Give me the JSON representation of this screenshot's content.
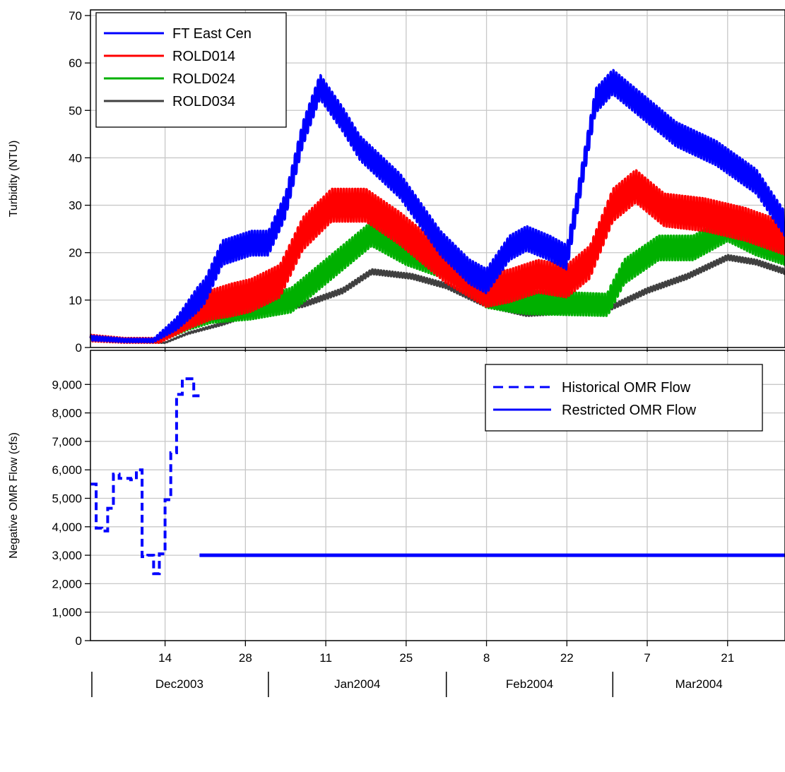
{
  "chart_data": [
    {
      "type": "line",
      "panel": "top",
      "ylabel": "Turbidity (NTU)",
      "ylim": [
        0,
        70
      ],
      "yticks": [
        "0",
        "10",
        "20",
        "30",
        "40",
        "50",
        "60",
        "70"
      ],
      "grid": true,
      "legend": {
        "placement": "top-left"
      },
      "series": [
        {
          "name": "FT East Cen",
          "color": "#0000ff",
          "daily_swing": 3,
          "points": [
            [
              "2003-12-01",
              2
            ],
            [
              "2003-12-07",
              1.5
            ],
            [
              "2003-12-12",
              1.5
            ],
            [
              "2003-12-16",
              5
            ],
            [
              "2003-12-21",
              12
            ],
            [
              "2003-12-24",
              20
            ],
            [
              "2003-12-29",
              22
            ],
            [
              "2004-01-01",
              22
            ],
            [
              "2004-01-04",
              30
            ],
            [
              "2004-01-07",
              45
            ],
            [
              "2004-01-10",
              55
            ],
            [
              "2004-01-14",
              48
            ],
            [
              "2004-01-17",
              42
            ],
            [
              "2004-01-24",
              34
            ],
            [
              "2004-01-31",
              22
            ],
            [
              "2004-02-05",
              16
            ],
            [
              "2004-02-08",
              14
            ],
            [
              "2004-02-12",
              21
            ],
            [
              "2004-02-15",
              23
            ],
            [
              "2004-02-19",
              21
            ],
            [
              "2004-02-22",
              19
            ],
            [
              "2004-02-24",
              32
            ],
            [
              "2004-02-27",
              52
            ],
            [
              "2004-03-01",
              56
            ],
            [
              "2004-03-05",
              52
            ],
            [
              "2004-03-12",
              45
            ],
            [
              "2004-03-19",
              41
            ],
            [
              "2004-03-26",
              35
            ],
            [
              "2004-03-31",
              26
            ]
          ]
        },
        {
          "name": "ROLD014",
          "color": "#ff0000",
          "daily_swing": 4,
          "points": [
            [
              "2003-12-01",
              2
            ],
            [
              "2003-12-07",
              1.5
            ],
            [
              "2003-12-13",
              1.5
            ],
            [
              "2003-12-18",
              6
            ],
            [
              "2003-12-22",
              9
            ],
            [
              "2003-12-29",
              11
            ],
            [
              "2004-01-03",
              14
            ],
            [
              "2004-01-07",
              24
            ],
            [
              "2004-01-12",
              30
            ],
            [
              "2004-01-18",
              30
            ],
            [
              "2004-01-24",
              25
            ],
            [
              "2004-02-01",
              17
            ],
            [
              "2004-02-08",
              12
            ],
            [
              "2004-02-12",
              13
            ],
            [
              "2004-02-17",
              15
            ],
            [
              "2004-02-22",
              14
            ],
            [
              "2004-02-26",
              18
            ],
            [
              "2004-03-01",
              30
            ],
            [
              "2004-03-05",
              34
            ],
            [
              "2004-03-10",
              29
            ],
            [
              "2004-03-17",
              28
            ],
            [
              "2004-03-24",
              26
            ],
            [
              "2004-03-31",
              23
            ]
          ]
        },
        {
          "name": "ROLD024",
          "color": "#00b000",
          "daily_swing": 3,
          "points": [
            [
              "2003-12-01",
              2
            ],
            [
              "2003-12-07",
              1.5
            ],
            [
              "2003-12-13",
              1.5
            ],
            [
              "2003-12-18",
              5
            ],
            [
              "2003-12-22",
              7
            ],
            [
              "2003-12-29",
              8
            ],
            [
              "2004-01-05",
              10
            ],
            [
              "2004-01-12",
              17
            ],
            [
              "2004-01-19",
              24
            ],
            [
              "2004-01-25",
              20
            ],
            [
              "2004-02-01",
              17
            ],
            [
              "2004-02-08",
              11
            ],
            [
              "2004-02-15",
              9.5
            ],
            [
              "2004-02-29",
              9
            ],
            [
              "2004-03-03",
              16
            ],
            [
              "2004-03-09",
              21
            ],
            [
              "2004-03-15",
              21
            ],
            [
              "2004-03-21",
              25
            ],
            [
              "2004-03-26",
              22
            ],
            [
              "2004-03-31",
              20
            ]
          ]
        },
        {
          "name": "ROLD034",
          "color": "#404040",
          "daily_swing": 0.6,
          "points": [
            [
              "2003-12-01",
              2
            ],
            [
              "2003-12-07",
              1.2
            ],
            [
              "2003-12-14",
              1
            ],
            [
              "2003-12-18",
              3
            ],
            [
              "2003-12-24",
              5
            ],
            [
              "2003-12-31",
              8
            ],
            [
              "2004-01-07",
              9
            ],
            [
              "2004-01-14",
              12
            ],
            [
              "2004-01-19",
              16
            ],
            [
              "2004-01-26",
              15
            ],
            [
              "2004-02-01",
              13
            ],
            [
              "2004-02-08",
              9
            ],
            [
              "2004-02-15",
              7
            ],
            [
              "2004-02-22",
              7.5
            ],
            [
              "2004-02-29",
              8
            ],
            [
              "2004-03-07",
              12
            ],
            [
              "2004-03-14",
              15
            ],
            [
              "2004-03-21",
              19
            ],
            [
              "2004-03-26",
              18
            ],
            [
              "2004-03-31",
              16
            ]
          ]
        }
      ]
    },
    {
      "type": "line",
      "panel": "bottom",
      "ylabel": "Negative OMR Flow (cfs)",
      "ylim": [
        0,
        10000
      ],
      "yticks": [
        "0",
        "1,000",
        "2,000",
        "3,000",
        "4,000",
        "5,000",
        "6,000",
        "7,000",
        "8,000",
        "9,000"
      ],
      "grid": true,
      "legend": {
        "placement": "top-right"
      },
      "series": [
        {
          "name": "Historical OMR Flow",
          "color": "#0000ff",
          "style": "dashed",
          "step": true,
          "points": [
            [
              "2003-12-01",
              5500
            ],
            [
              "2003-12-02",
              3950
            ],
            [
              "2003-12-03",
              3850
            ],
            [
              "2003-12-04",
              4650
            ],
            [
              "2003-12-05",
              5850
            ],
            [
              "2003-12-06",
              5700
            ],
            [
              "2003-12-07",
              5700
            ],
            [
              "2003-12-08",
              5650
            ],
            [
              "2003-12-09",
              6000
            ],
            [
              "2003-12-10",
              2950
            ],
            [
              "2003-12-11",
              3000
            ],
            [
              "2003-12-12",
              2350
            ],
            [
              "2003-12-13",
              3050
            ],
            [
              "2003-12-14",
              4950
            ],
            [
              "2003-12-15",
              6600
            ],
            [
              "2003-12-16",
              8650
            ],
            [
              "2003-12-17",
              9200
            ],
            [
              "2003-12-19",
              8600
            ],
            [
              "2003-12-20",
              8600
            ]
          ]
        },
        {
          "name": "Restricted OMR Flow",
          "color": "#0000ff",
          "style": "solid",
          "step": false,
          "points": [
            [
              "2003-12-20",
              3000
            ],
            [
              "2004-03-31",
              3000
            ]
          ]
        }
      ]
    }
  ],
  "x_axis": {
    "range": [
      "2003-12-01",
      "2004-03-31"
    ],
    "day_ticks": [
      {
        "date": "2003-12-14",
        "label": "14"
      },
      {
        "date": "2003-12-28",
        "label": "28"
      },
      {
        "date": "2004-01-11",
        "label": "11"
      },
      {
        "date": "2004-01-25",
        "label": "25"
      },
      {
        "date": "2004-02-08",
        "label": "8"
      },
      {
        "date": "2004-02-22",
        "label": "22"
      },
      {
        "date": "2004-03-07",
        "label": "7"
      },
      {
        "date": "2004-03-21",
        "label": "21"
      }
    ],
    "months": [
      {
        "label": "Dec2003",
        "start": "2003-12-01",
        "end": "2004-01-01"
      },
      {
        "label": "Jan2004",
        "start": "2004-01-01",
        "end": "2004-02-01"
      },
      {
        "label": "Feb2004",
        "start": "2004-02-01",
        "end": "2004-03-01"
      },
      {
        "label": "Mar2004",
        "start": "2004-03-01",
        "end": "2004-03-31"
      }
    ]
  }
}
